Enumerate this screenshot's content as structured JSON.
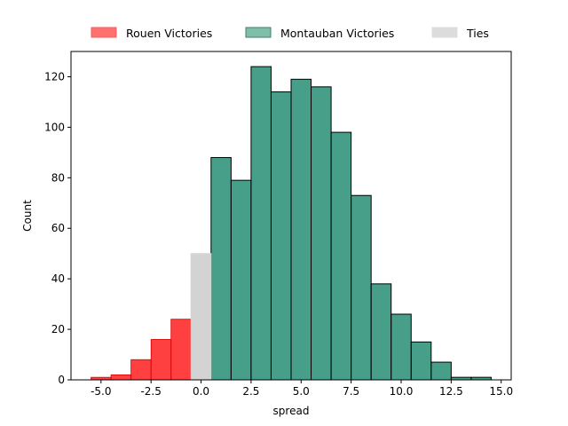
{
  "chart_data": {
    "type": "bar",
    "chart_kind": "histogram",
    "xlabel": "spread",
    "ylabel": "Count",
    "xlim": [
      -6.5,
      15.5
    ],
    "ylim": [
      0,
      130
    ],
    "xticks": [
      "-5.0",
      "-2.5",
      "0.0",
      "2.5",
      "5.0",
      "7.5",
      "10.0",
      "12.5",
      "15.0"
    ],
    "xtick_values": [
      -5,
      -2.5,
      0,
      2.5,
      5,
      7.5,
      10,
      12.5,
      15
    ],
    "yticks": [
      "0",
      "20",
      "40",
      "60",
      "80",
      "100",
      "120"
    ],
    "ytick_values": [
      0,
      20,
      40,
      60,
      80,
      100,
      120
    ],
    "bin_width": 1,
    "legend_position": "top-center",
    "grid": false,
    "series": [
      {
        "name": "Rouen Victories",
        "color": "#ff0000",
        "legend_color": "#ff7070",
        "bins": [
          {
            "x": -5,
            "count": 1
          },
          {
            "x": -4,
            "count": 2
          },
          {
            "x": -3,
            "count": 8
          },
          {
            "x": -2,
            "count": 16
          },
          {
            "x": -1,
            "count": 24
          }
        ]
      },
      {
        "name": "Montauban Victories",
        "color": "#0b7f62",
        "legend_color": "#7fbfa9",
        "bins": [
          {
            "x": 1,
            "count": 88
          },
          {
            "x": 2,
            "count": 79
          },
          {
            "x": 3,
            "count": 124
          },
          {
            "x": 4,
            "count": 114
          },
          {
            "x": 5,
            "count": 119
          },
          {
            "x": 6,
            "count": 116
          },
          {
            "x": 7,
            "count": 98
          },
          {
            "x": 8,
            "count": 73
          },
          {
            "x": 9,
            "count": 38
          },
          {
            "x": 10,
            "count": 26
          },
          {
            "x": 11,
            "count": 15
          },
          {
            "x": 12,
            "count": 7
          },
          {
            "x": 13,
            "count": 1
          },
          {
            "x": 14,
            "count": 1
          }
        ]
      },
      {
        "name": "Ties",
        "color": "#d3d3d3",
        "legend_color": "#dcdcdc",
        "bins": [
          {
            "x": 0,
            "count": 50
          }
        ]
      }
    ]
  }
}
